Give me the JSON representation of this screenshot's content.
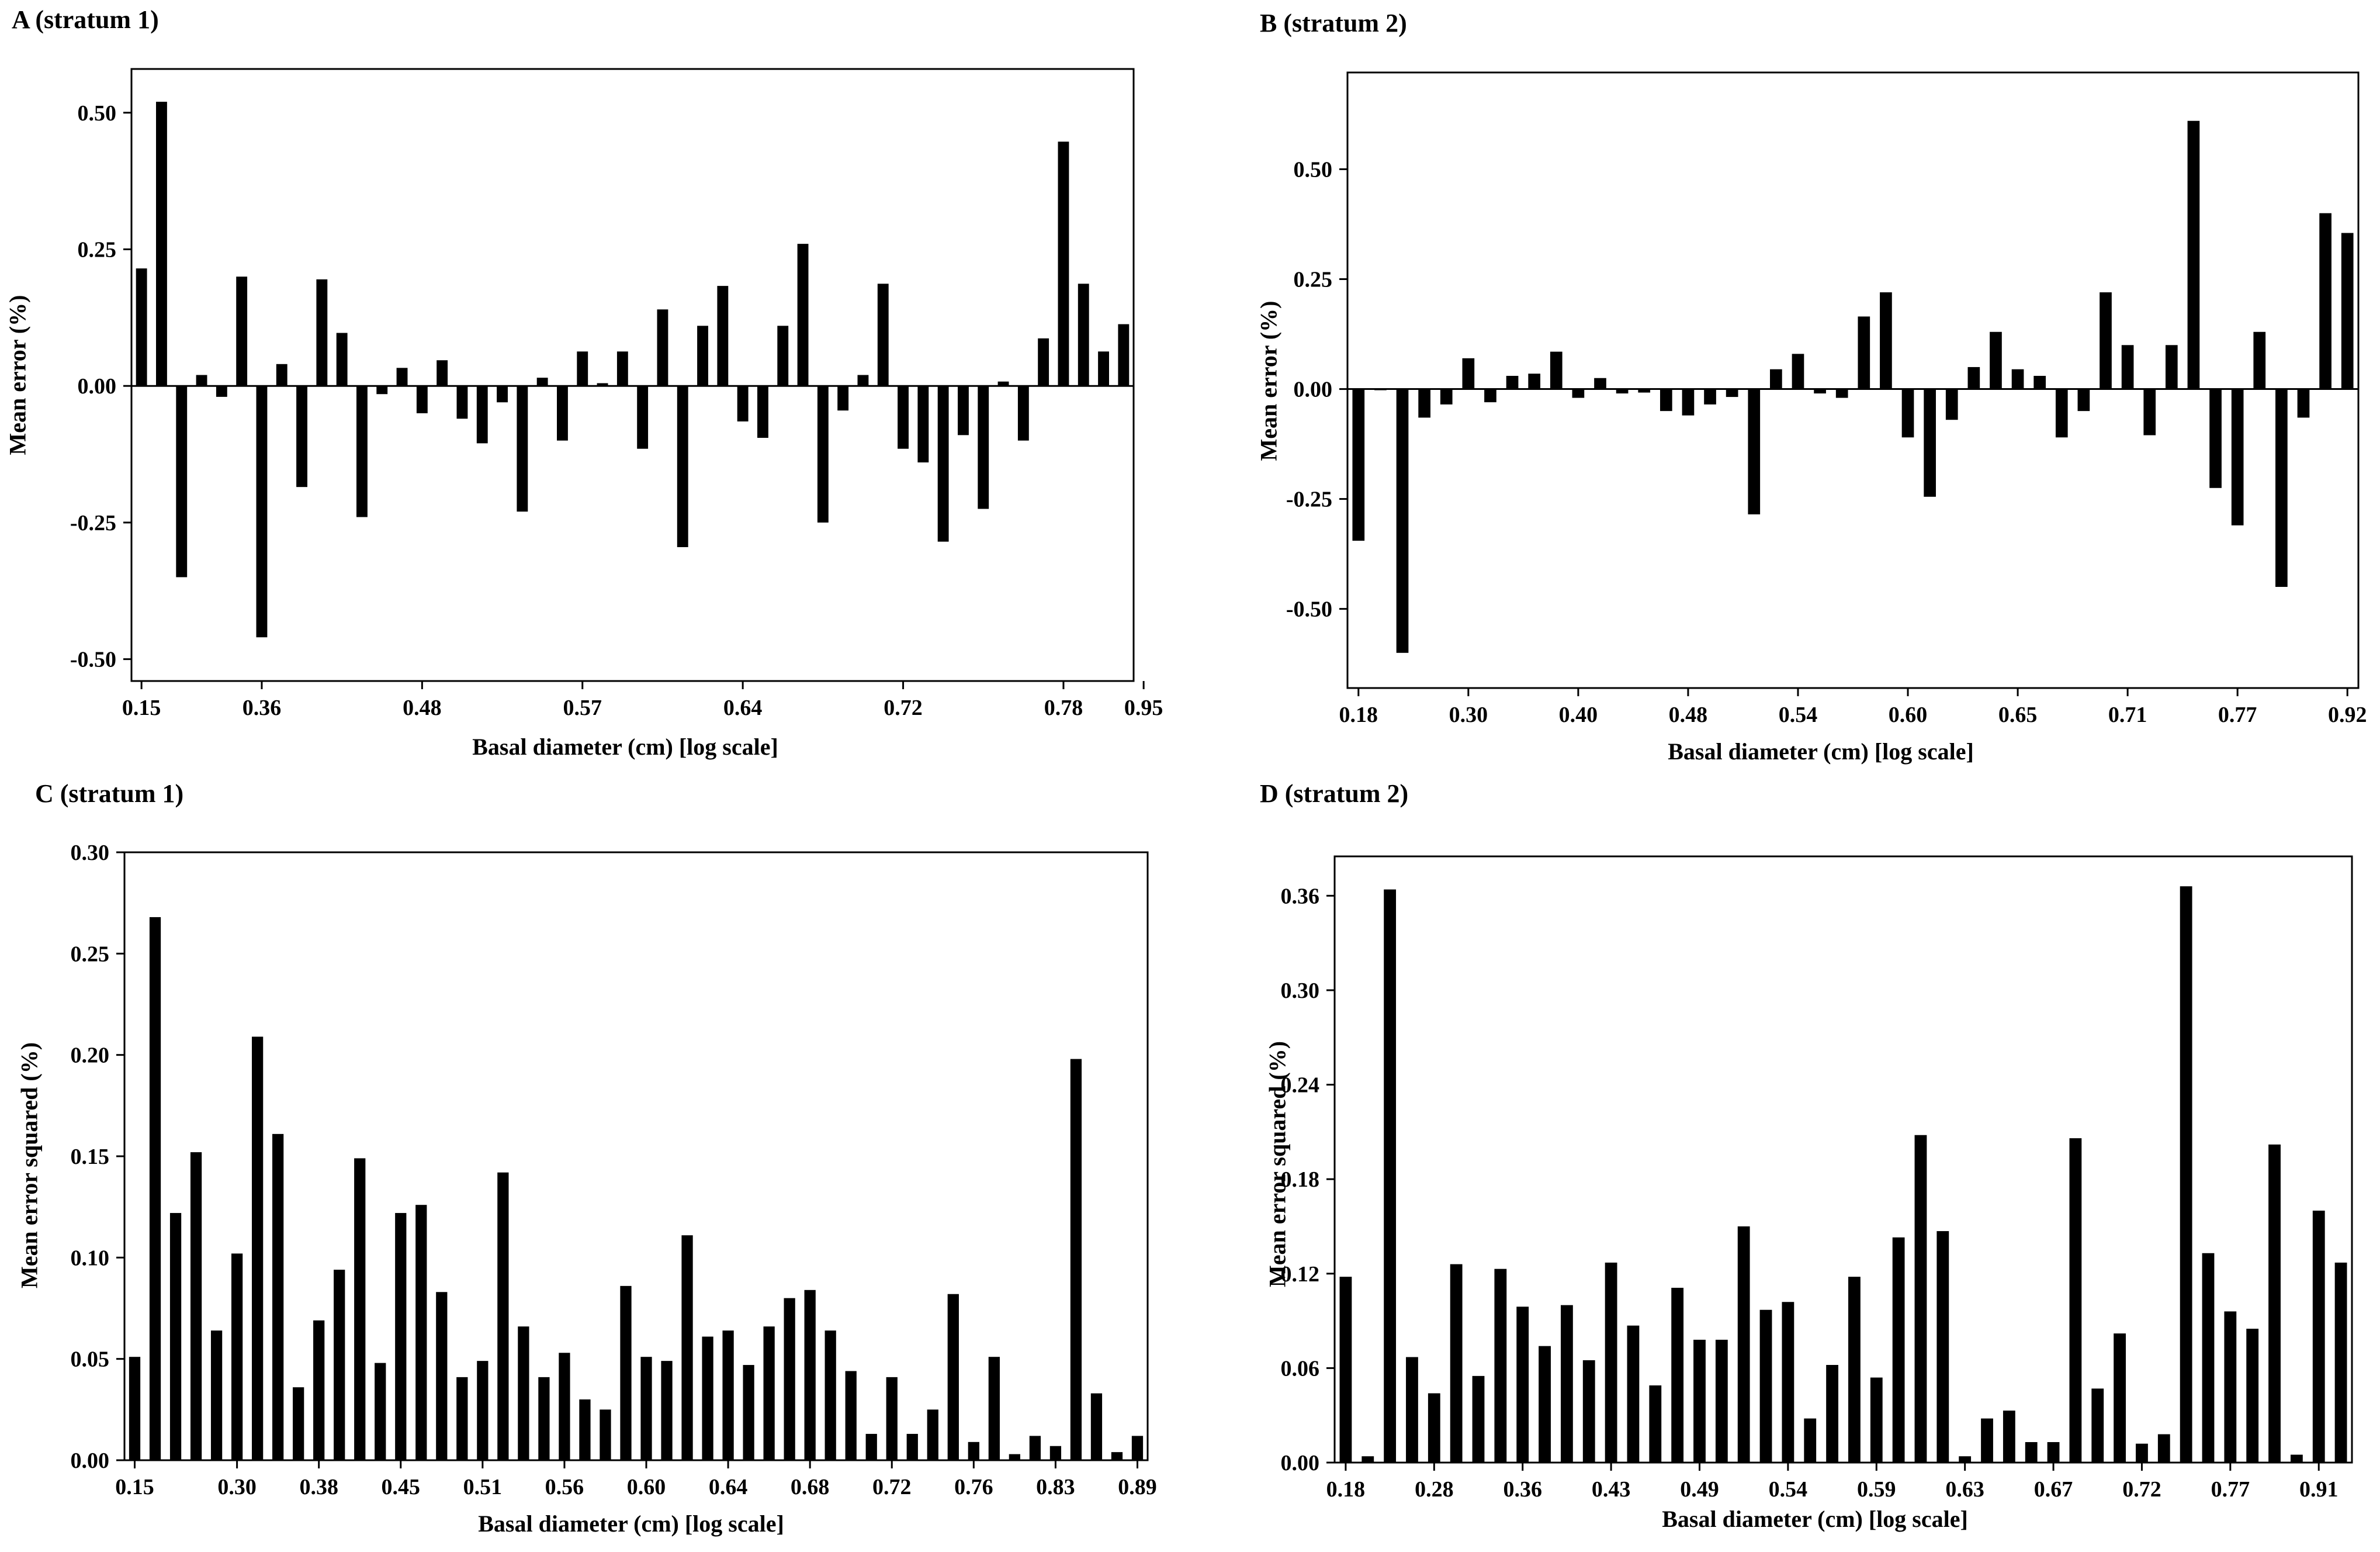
{
  "colors": {
    "bar": "#000000",
    "axis": "#000000",
    "background": "#ffffff"
  },
  "chart_data": [
    {
      "id": "A",
      "type": "bar",
      "title": "A (stratum 1)",
      "xlabel": "Basal diameter (cm) [log scale]",
      "ylabel": "Mean error (%)",
      "ylim": [
        -0.54,
        0.58
      ],
      "yticks": [
        -0.5,
        -0.25,
        0.0,
        0.25,
        0.5
      ],
      "ytick_labels": [
        "-0.50",
        "-0.25",
        "0.00",
        "0.25",
        "0.50"
      ],
      "xtick_labels": [
        "0.15",
        "0.36",
        "0.48",
        "0.57",
        "0.64",
        "0.72",
        "0.78",
        "0.95"
      ],
      "xtick_bar_index": [
        0,
        6,
        14,
        22,
        30,
        38,
        46,
        50
      ],
      "grid": false,
      "values": [
        0.215,
        0.52,
        -0.35,
        0.02,
        -0.02,
        0.2,
        -0.46,
        0.04,
        -0.185,
        0.195,
        0.097,
        -0.24,
        -0.015,
        0.033,
        -0.05,
        0.047,
        -0.06,
        -0.105,
        -0.03,
        -0.23,
        0.015,
        -0.1,
        0.063,
        0.005,
        0.063,
        -0.115,
        0.14,
        -0.295,
        0.11,
        0.183,
        -0.065,
        -0.095,
        0.11,
        0.26,
        -0.25,
        -0.045,
        0.02,
        0.187,
        -0.115,
        -0.14,
        -0.285,
        -0.09,
        -0.225,
        0.008,
        -0.1,
        0.087,
        0.447,
        0.187,
        0.063,
        0.113
      ]
    },
    {
      "id": "B",
      "type": "bar",
      "title": "B (stratum 2)",
      "xlabel": "Basal diameter (cm) [log scale]",
      "ylabel": "Mean error (%)",
      "ylim": [
        -0.68,
        0.72
      ],
      "yticks": [
        -0.5,
        -0.25,
        0.0,
        0.25,
        0.5
      ],
      "ytick_labels": [
        "-0.50",
        "-0.25",
        "0.00",
        "0.25",
        "0.50"
      ],
      "xtick_labels": [
        "0.18",
        "0.30",
        "0.40",
        "0.48",
        "0.54",
        "0.60",
        "0.65",
        "0.71",
        "0.77",
        "0.92"
      ],
      "xtick_bar_index": [
        0,
        5,
        10,
        15,
        20,
        25,
        30,
        35,
        40,
        45
      ],
      "grid": false,
      "values": [
        -0.345,
        0.0,
        -0.6,
        -0.065,
        -0.035,
        0.07,
        -0.03,
        0.03,
        0.035,
        0.085,
        -0.02,
        0.025,
        -0.01,
        -0.008,
        -0.05,
        -0.06,
        -0.035,
        -0.018,
        -0.285,
        0.045,
        0.08,
        -0.01,
        -0.02,
        0.165,
        0.22,
        -0.11,
        -0.245,
        -0.07,
        0.05,
        0.13,
        0.045,
        0.03,
        -0.11,
        -0.05,
        0.22,
        0.1,
        -0.105,
        0.1,
        0.61,
        -0.225,
        -0.31,
        0.13,
        -0.45,
        -0.065,
        0.4,
        0.355
      ]
    },
    {
      "id": "C",
      "type": "bar",
      "title": "C (stratum 1)",
      "xlabel": "Basal diameter (cm) [log scale]",
      "ylabel": "Mean error squared (%)",
      "ylim": [
        0,
        0.3
      ],
      "yticks": [
        0.0,
        0.05,
        0.1,
        0.15,
        0.2,
        0.25,
        0.3
      ],
      "ytick_labels": [
        "0.00",
        "0.05",
        "0.10",
        "0.15",
        "0.20",
        "0.25",
        "0.30"
      ],
      "xtick_labels": [
        "0.15",
        "0.30",
        "0.38",
        "0.45",
        "0.51",
        "0.56",
        "0.60",
        "0.64",
        "0.68",
        "0.72",
        "0.76",
        "0.83",
        "0.89"
      ],
      "xtick_bar_index": [
        0,
        5,
        9,
        13,
        17,
        21,
        25,
        29,
        33,
        37,
        41,
        45,
        49
      ],
      "grid": false,
      "values": [
        0.051,
        0.268,
        0.122,
        0.152,
        0.064,
        0.102,
        0.209,
        0.161,
        0.036,
        0.069,
        0.094,
        0.149,
        0.048,
        0.122,
        0.126,
        0.083,
        0.041,
        0.049,
        0.142,
        0.066,
        0.041,
        0.053,
        0.03,
        0.025,
        0.086,
        0.051,
        0.049,
        0.111,
        0.061,
        0.064,
        0.047,
        0.066,
        0.08,
        0.084,
        0.064,
        0.044,
        0.013,
        0.041,
        0.013,
        0.025,
        0.082,
        0.009,
        0.051,
        0.003,
        0.012,
        0.007,
        0.198,
        0.033,
        0.004,
        0.012
      ]
    },
    {
      "id": "D",
      "type": "bar",
      "title": "D (stratum 2)",
      "xlabel": "Basal diameter (cm) [log scale]",
      "ylabel": "Mean error squared (%)",
      "ylim": [
        0,
        0.385
      ],
      "yticks": [
        0.0,
        0.06,
        0.12,
        0.18,
        0.24,
        0.3,
        0.36
      ],
      "ytick_labels": [
        "0.00",
        "0.06",
        "0.12",
        "0.18",
        "0.24",
        "0.30",
        "0.36"
      ],
      "xtick_labels": [
        "0.18",
        "0.28",
        "0.36",
        "0.43",
        "0.49",
        "0.54",
        "0.59",
        "0.63",
        "0.67",
        "0.72",
        "0.77",
        "0.91"
      ],
      "xtick_bar_index": [
        0,
        4,
        8,
        12,
        16,
        20,
        24,
        28,
        32,
        36,
        40,
        44
      ],
      "grid": false,
      "values": [
        0.118,
        0.004,
        0.364,
        0.067,
        0.044,
        0.126,
        0.055,
        0.123,
        0.099,
        0.074,
        0.1,
        0.065,
        0.127,
        0.087,
        0.049,
        0.111,
        0.078,
        0.078,
        0.15,
        0.097,
        0.102,
        0.028,
        0.062,
        0.118,
        0.054,
        0.143,
        0.208,
        0.147,
        0.004,
        0.028,
        0.033,
        0.013,
        0.013,
        0.206,
        0.047,
        0.082,
        0.012,
        0.018,
        0.366,
        0.133,
        0.096,
        0.085,
        0.202,
        0.005,
        0.16,
        0.127
      ]
    }
  ]
}
